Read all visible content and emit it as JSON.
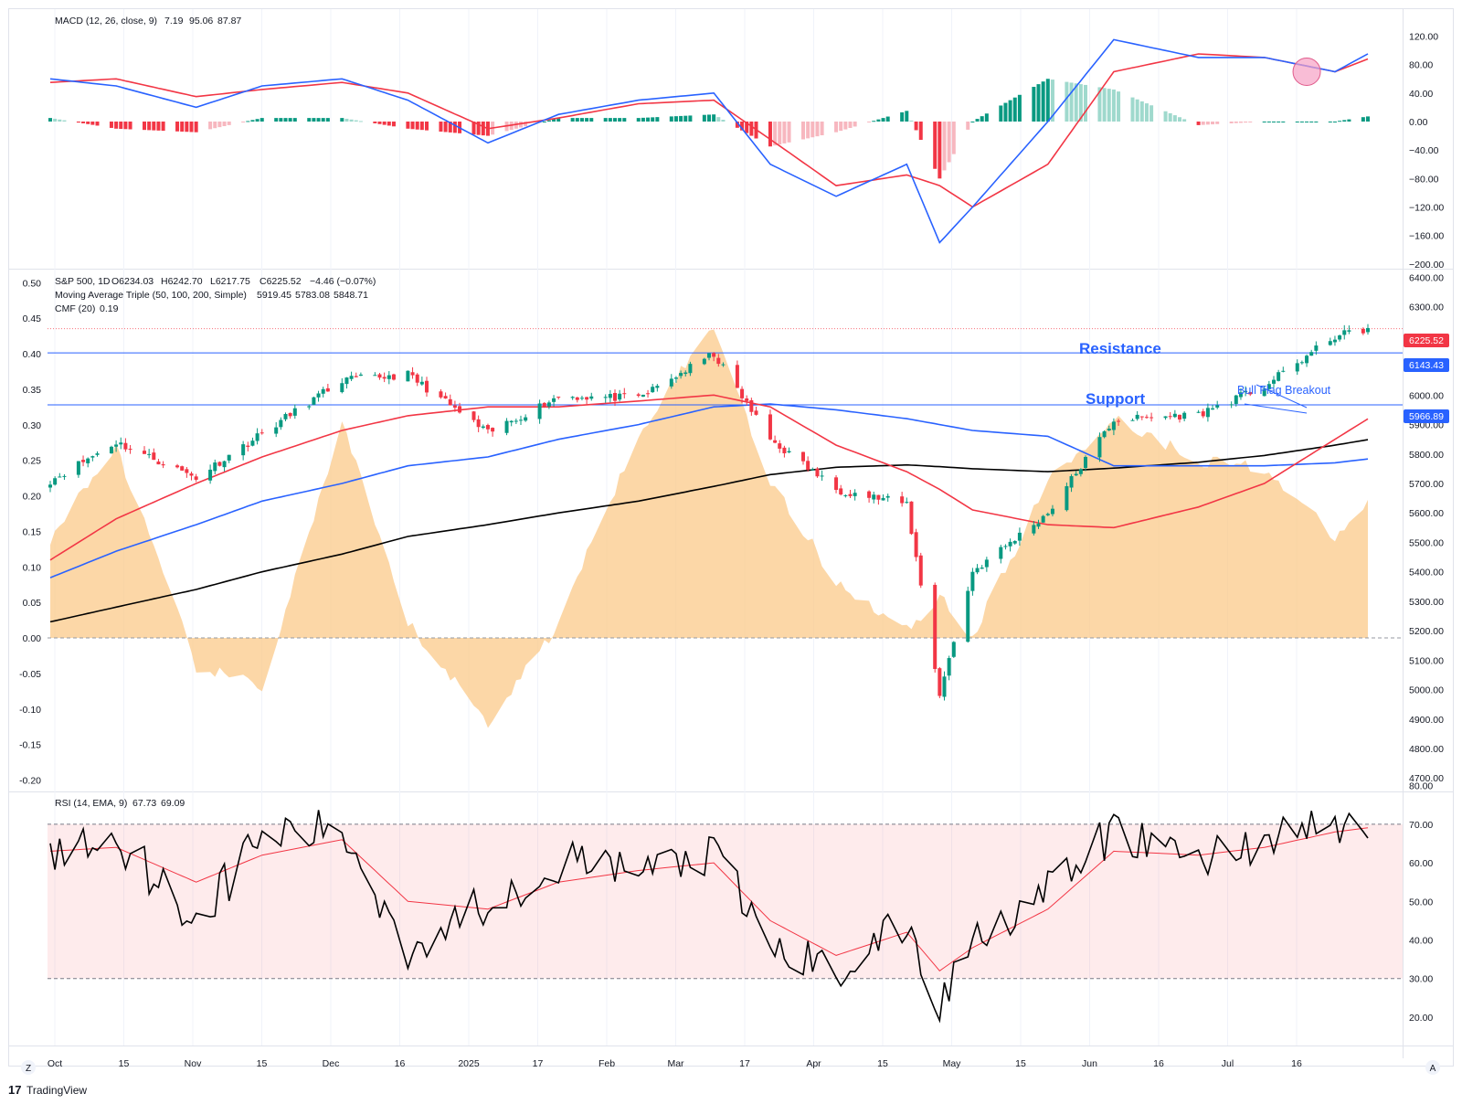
{
  "colors": {
    "up": "#089981",
    "down": "#f23645",
    "ma50": "#f23645",
    "ma100": "#2962ff",
    "ma200": "#000000",
    "cmf_fill": "#fbc98a",
    "macd_line": "#2962ff",
    "signal_line": "#f23645",
    "rsi_line": "#000000",
    "rsi_ema": "#f23645",
    "annotation": "#2962ff",
    "last_price_bg": "#f23645",
    "level_bg": "#2962ff"
  },
  "macd_panel": {
    "legend_name": "MACD (12, 26, close, 9)",
    "hist_value": "7.19",
    "macd_value": "95.06",
    "signal_value": "87.87",
    "axis_ticks": [
      "120.00",
      "80.00",
      "40.00",
      "0.00",
      "−40.00",
      "−80.00",
      "−120.00",
      "−160.00",
      "−200.00"
    ]
  },
  "price_panel": {
    "symbol": "S&P 500, 1D",
    "open": "O6234.03",
    "high": "H6242.70",
    "low": "L6217.75",
    "close": "C6225.52",
    "change": "−4.46 (−0.07%)",
    "ma_legend": "Moving Average Triple (50, 100, 200, Simple)",
    "ma50_value": "5919.45",
    "ma100_value": "5783.08",
    "ma200_value": "5848.71",
    "cmf_legend": "CMF (20)",
    "cmf_value": "0.19",
    "right_ticks": [
      "6400.00",
      "6300.00",
      "6200.00",
      "6100.00",
      "6000.00",
      "5900.00",
      "5800.00",
      "5700.00",
      "5600.00",
      "5500.00",
      "5400.00",
      "5300.00",
      "5200.00",
      "5100.00",
      "5000.00",
      "4900.00",
      "4800.00",
      "4700.00"
    ],
    "left_ticks": [
      "0.50",
      "0.45",
      "0.40",
      "0.35",
      "0.30",
      "0.25",
      "0.20",
      "0.15",
      "0.10",
      "0.05",
      "0.00",
      "-0.05",
      "-0.10",
      "-0.15",
      "-0.20"
    ],
    "last_price_label": "6225.52",
    "resistance_price": "6143.43",
    "support_price": "5966.89",
    "resistance_text": "Resistance",
    "support_text": "Support",
    "flag_text": "Bull Flag Breakout"
  },
  "rsi_panel": {
    "legend_name": "RSI (14, EMA, 9)",
    "rsi_value": "67.73",
    "ema_value": "69.09",
    "axis_ticks": [
      "80.00",
      "70.00",
      "60.00",
      "50.00",
      "40.00",
      "30.00",
      "20.00"
    ]
  },
  "time_axis": {
    "labels": [
      "Oct",
      "15",
      "Nov",
      "15",
      "Dec",
      "16",
      "2025",
      "17",
      "Feb",
      "Mar",
      "17",
      "Apr",
      "15",
      "May",
      "15",
      "Jun",
      "16",
      "Jul",
      "16"
    ]
  },
  "footer": {
    "brand": "TradingView",
    "z_button": "Z",
    "a_button": "A"
  },
  "chart_data": [
    {
      "type": "line",
      "title": "S&P 500, 1D",
      "x": [
        "2024-10-01",
        "2024-10-15",
        "2024-11-01",
        "2024-11-15",
        "2024-12-02",
        "2024-12-16",
        "2025-01-02",
        "2025-01-17",
        "2025-02-03",
        "2025-02-19",
        "2025-03-03",
        "2025-03-17",
        "2025-04-01",
        "2025-04-08",
        "2025-04-15",
        "2025-05-01",
        "2025-05-15",
        "2025-06-02",
        "2025-06-16",
        "2025-07-01",
        "2025-07-08"
      ],
      "series": [
        {
          "name": "S&P 500",
          "values": [
            5710,
            5840,
            5720,
            5870,
            6050,
            6070,
            5870,
            5996,
            5990,
            6140,
            5850,
            5680,
            5630,
            4985,
            5400,
            5600,
            5916,
            5935,
            6030,
            6200,
            6225.52
          ]
        },
        {
          "name": "50",
          "values": [
            5440,
            5580,
            5700,
            5790,
            5880,
            5930,
            5960,
            5960,
            5980,
            6000,
            5960,
            5830,
            5740,
            5680,
            5610,
            5560,
            5550,
            5620,
            5700,
            5850,
            5919.45
          ]
        },
        {
          "name": "100",
          "values": [
            5380,
            5470,
            5560,
            5640,
            5700,
            5760,
            5790,
            5850,
            5900,
            5960,
            5970,
            5950,
            5920,
            5900,
            5880,
            5860,
            5760,
            5760,
            5760,
            5770,
            5783.08
          ]
        },
        {
          "name": "200",
          "values": [
            5230,
            5280,
            5340,
            5400,
            5460,
            5520,
            5560,
            5600,
            5640,
            5690,
            5730,
            5755,
            5763,
            5757,
            5750,
            5740,
            5752,
            5772,
            5795,
            5830,
            5848.71
          ]
        }
      ],
      "ylim": [
        4700,
        6400
      ],
      "annotations": [
        {
          "text": "Resistance",
          "y": 6143.43
        },
        {
          "text": "Support",
          "y": 5966.89
        },
        {
          "text": "Bull Flag Breakout",
          "x": "2025-06-25"
        }
      ]
    },
    {
      "type": "area",
      "title": "CMF (20)",
      "x": [
        "2024-10-01",
        "2024-10-15",
        "2024-11-01",
        "2024-11-15",
        "2024-12-02",
        "2024-12-16",
        "2025-01-02",
        "2025-01-17",
        "2025-02-03",
        "2025-02-19",
        "2025-03-03",
        "2025-03-17",
        "2025-04-01",
        "2025-04-08",
        "2025-04-15",
        "2025-05-01",
        "2025-05-15",
        "2025-06-02",
        "2025-06-16",
        "2025-07-01",
        "2025-07-08"
      ],
      "values": [
        0.14,
        0.27,
        -0.04,
        -0.07,
        0.3,
        0.02,
        -0.12,
        0.02,
        0.29,
        0.44,
        0.22,
        0.08,
        0.01,
        0.06,
        0.0,
        0.22,
        0.31,
        0.25,
        0.24,
        0.14,
        0.19
      ],
      "ylim": [
        -0.2,
        0.5
      ]
    },
    {
      "type": "line",
      "title": "MACD (12, 26, close, 9)",
      "x": [
        "2024-10-01",
        "2024-10-15",
        "2024-11-01",
        "2024-11-15",
        "2024-12-02",
        "2024-12-16",
        "2025-01-02",
        "2025-01-17",
        "2025-02-03",
        "2025-02-19",
        "2025-03-03",
        "2025-03-17",
        "2025-04-01",
        "2025-04-08",
        "2025-04-15",
        "2025-05-01",
        "2025-05-15",
        "2025-06-02",
        "2025-06-16",
        "2025-07-01",
        "2025-07-08"
      ],
      "series": [
        {
          "name": "MACD",
          "values": [
            60,
            50,
            20,
            50,
            60,
            30,
            -30,
            10,
            30,
            40,
            -60,
            -105,
            -60,
            -170,
            -120,
            0,
            115,
            90,
            90,
            70,
            95.06
          ]
        },
        {
          "name": "Signal",
          "values": [
            55,
            60,
            35,
            45,
            55,
            40,
            -10,
            5,
            25,
            30,
            -25,
            -90,
            -75,
            -90,
            -120,
            -60,
            70,
            95,
            90,
            70,
            87.87
          ]
        },
        {
          "name": "Histogram",
          "values": [
            5,
            -10,
            -15,
            5,
            5,
            -10,
            -20,
            5,
            5,
            10,
            -35,
            -15,
            15,
            -80,
            0,
            60,
            45,
            -5,
            0,
            0,
            7.19
          ]
        }
      ],
      "ylim": [
        -200,
        140
      ]
    },
    {
      "type": "line",
      "title": "RSI (14, EMA, 9)",
      "x": [
        "2024-10-01",
        "2024-10-15",
        "2024-11-01",
        "2024-11-15",
        "2024-12-02",
        "2024-12-16",
        "2025-01-02",
        "2025-01-17",
        "2025-02-03",
        "2025-02-19",
        "2025-03-03",
        "2025-03-17",
        "2025-04-01",
        "2025-04-08",
        "2025-04-15",
        "2025-05-01",
        "2025-05-15",
        "2025-06-02",
        "2025-06-16",
        "2025-07-01",
        "2025-07-08"
      ],
      "series": [
        {
          "name": "RSI",
          "values": [
            62,
            67,
            45,
            67,
            68,
            38,
            50,
            60,
            58,
            62,
            38,
            32,
            44,
            22,
            42,
            52,
            68,
            61,
            66,
            70,
            67.73
          ]
        },
        {
          "name": "EMA",
          "values": [
            63,
            64,
            55,
            62,
            66,
            50,
            48,
            55,
            58,
            60,
            45,
            36,
            42,
            32,
            38,
            48,
            63,
            62,
            64,
            68,
            69.09
          ]
        }
      ],
      "ylim": [
        15,
        82
      ]
    }
  ]
}
